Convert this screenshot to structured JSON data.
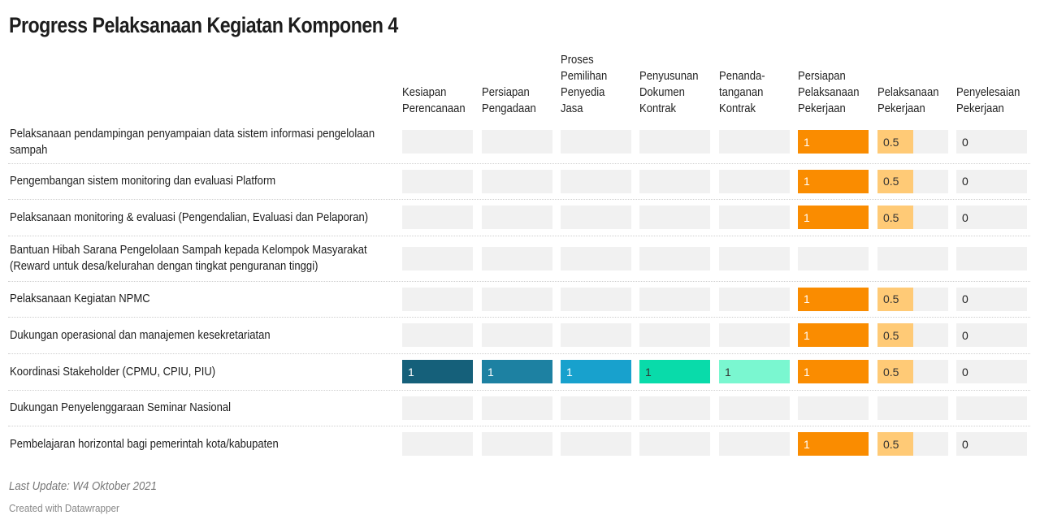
{
  "chart_data": {
    "type": "table",
    "title": "Progress Pelaksanaan Kegiatan Komponen 4",
    "columns": [
      {
        "label": "Kesiapan Perencanaan",
        "color": "#15607a"
      },
      {
        "label": "Persiapan Pengadaan",
        "color": "#1d81a2"
      },
      {
        "label": "Proses Pemilihan Penyedia Jasa",
        "color": "#18a1cd"
      },
      {
        "label": "Penyusunan Dokumen Kontrak",
        "color": "#09dbaa"
      },
      {
        "label": "Penanda-tanganan Kontrak",
        "color": "#7af7d0"
      },
      {
        "label": "Persiapan Pelaksanaan Pekerjaan",
        "color": "#fa8c00"
      },
      {
        "label": "Pelaksanaan Pekerjaan",
        "color": "#ffca76"
      },
      {
        "label": "Penyelesaian Pekerjaan",
        "color": "#d9d9d9"
      }
    ],
    "rows": [
      {
        "label": "Pelaksanaan pendampingan penyampaian data sistem informasi pengelolaan sampah",
        "values": [
          null,
          null,
          null,
          null,
          null,
          1,
          0.5,
          0
        ]
      },
      {
        "label": "Pengembangan sistem monitoring dan evaluasi Platform",
        "values": [
          null,
          null,
          null,
          null,
          null,
          1,
          0.5,
          0
        ]
      },
      {
        "label": "Pelaksanaan monitoring & evaluasi (Pengendalian, Evaluasi dan Pelaporan)",
        "values": [
          null,
          null,
          null,
          null,
          null,
          1,
          0.5,
          0
        ]
      },
      {
        "label": "Bantuan Hibah Sarana Pengelolaan Sampah kepada Kelompok Masyarakat (Reward untuk desa/kelurahan dengan tingkat penguranan tinggi)",
        "values": [
          null,
          null,
          null,
          null,
          null,
          null,
          null,
          null
        ]
      },
      {
        "label": "Pelaksanaan Kegiatan NPMC",
        "values": [
          null,
          null,
          null,
          null,
          null,
          1,
          0.5,
          0
        ]
      },
      {
        "label": "Dukungan operasional dan manajemen kesekretariatan",
        "values": [
          null,
          null,
          null,
          null,
          null,
          1,
          0.5,
          0
        ]
      },
      {
        "label": "Koordinasi Stakeholder (CPMU, CPIU, PIU)",
        "values": [
          1,
          1,
          1,
          1,
          1,
          1,
          0.5,
          0
        ]
      },
      {
        "label": "Dukungan Penyelenggaraan Seminar Nasional",
        "values": [
          null,
          null,
          null,
          null,
          null,
          null,
          null,
          null
        ]
      },
      {
        "label": "Pembelajaran horizontal bagi pemerintah kota/kabupaten",
        "values": [
          null,
          null,
          null,
          null,
          null,
          1,
          0.5,
          0
        ]
      }
    ],
    "max_value": 1
  },
  "footer": {
    "last_update": "Last Update: W4 Oktober 2021",
    "credit": "Created with Datawrapper"
  }
}
